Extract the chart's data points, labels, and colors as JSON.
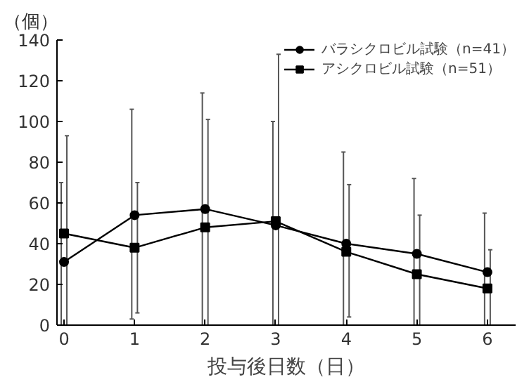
{
  "chart_data": {
    "type": "line",
    "xlabel": "投与後日数（日）",
    "ylabel": "（個）",
    "x": [
      0,
      1,
      2,
      3,
      4,
      5,
      6
    ],
    "xlim": [
      -0.1,
      6.4
    ],
    "xticks": [
      0,
      1,
      2,
      3,
      4,
      5,
      6
    ],
    "ylim": [
      0,
      140
    ],
    "yticks": [
      0,
      20,
      40,
      60,
      80,
      100,
      120,
      140
    ],
    "grid": false,
    "legend": "top right",
    "series": [
      {
        "name": "バラシクロビル試験（n=41）",
        "color": "#000000",
        "marker": "circle",
        "values": [
          31,
          54,
          57,
          49,
          40,
          35,
          26
        ],
        "errors": [
          [
            0,
            70
          ],
          [
            3,
            106
          ],
          [
            0,
            114
          ],
          [
            0,
            100
          ],
          [
            0,
            85
          ],
          [
            0,
            72
          ],
          [
            0,
            55
          ]
        ]
      },
      {
        "name": "アシクロビル試験（n=51）",
        "color": "#000000",
        "marker": "square",
        "values": [
          45,
          38,
          48,
          51,
          36,
          25,
          18
        ],
        "errors": [
          [
            0,
            93
          ],
          [
            6,
            70
          ],
          [
            0,
            101
          ],
          [
            0,
            133
          ],
          [
            4,
            69
          ],
          [
            0,
            54
          ],
          [
            0,
            37
          ]
        ]
      }
    ]
  }
}
